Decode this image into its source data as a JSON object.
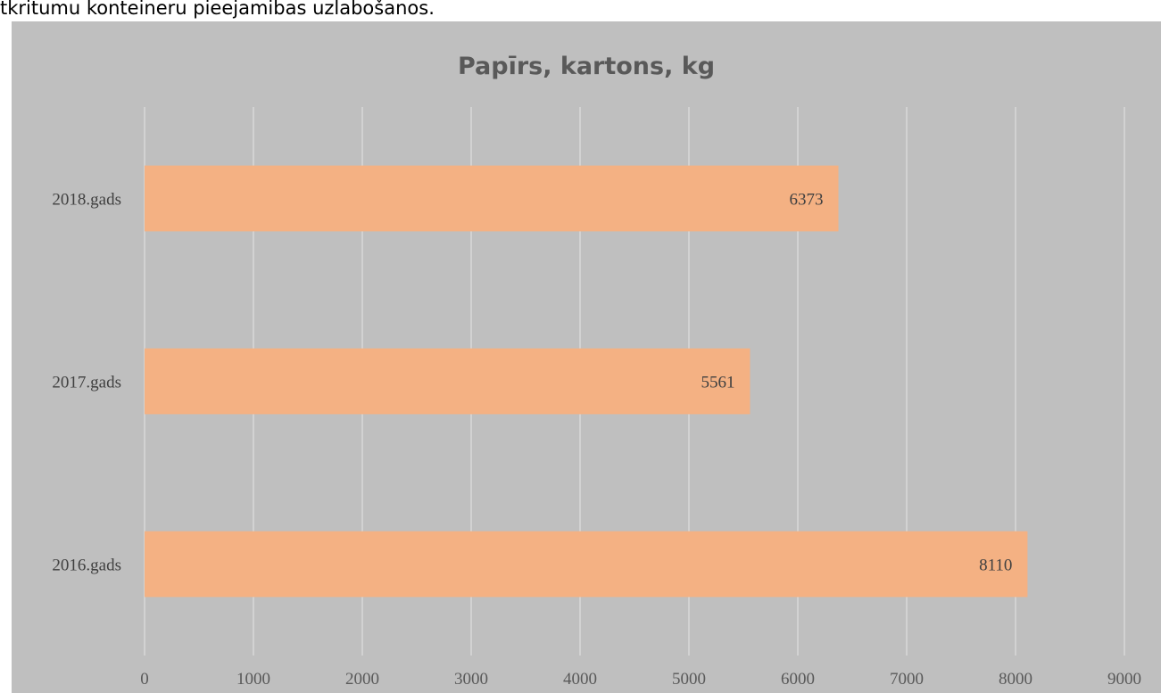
{
  "page": {
    "text_above": "tkritumu konteineru pieejamibas uzlabošanos."
  },
  "chart_data": {
    "type": "bar",
    "orientation": "horizontal",
    "title": "Papīrs, kartons, kg",
    "categories": [
      "2016.gads",
      "2017.gads",
      "2018.gads"
    ],
    "values": [
      8110,
      5561,
      6373
    ],
    "data_labels": [
      "8110",
      "5561",
      "6373"
    ],
    "xlim": [
      0,
      9000
    ],
    "x_ticks": [
      0,
      1000,
      2000,
      3000,
      4000,
      5000,
      6000,
      7000,
      8000,
      9000
    ],
    "xlabel": "",
    "ylabel": "",
    "grid": "vertical",
    "legend": "none",
    "colors": {
      "bar": "#f4b183",
      "background": "#bfbfbf",
      "gridline": "#d9d9d9"
    }
  }
}
